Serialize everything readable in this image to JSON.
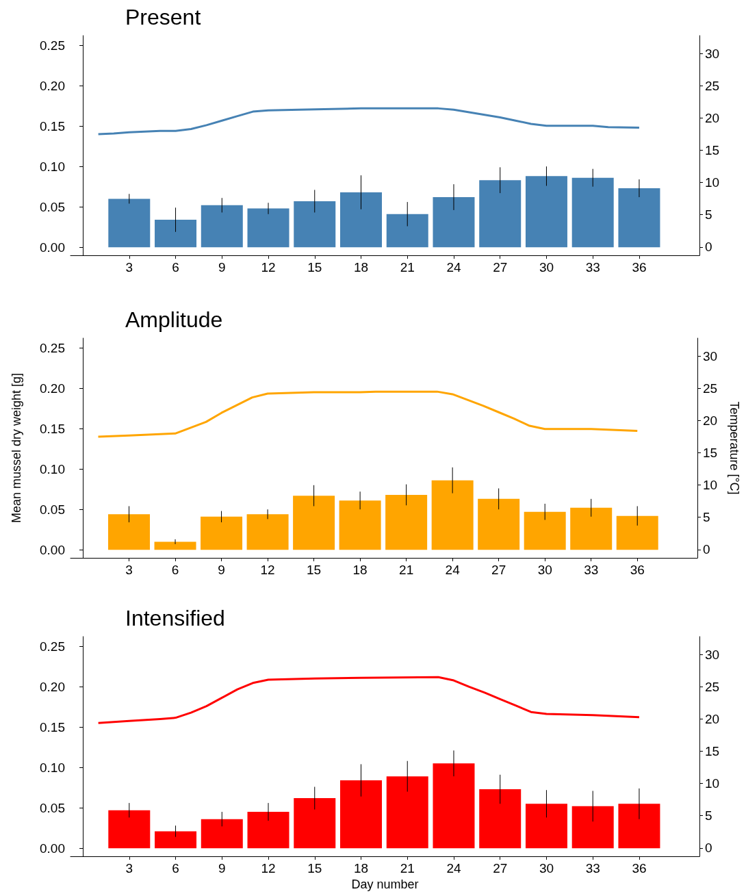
{
  "chart_data": [
    {
      "type": "bar",
      "title": "Present",
      "x": [
        3,
        6,
        9,
        12,
        15,
        18,
        21,
        24,
        27,
        30,
        33,
        36
      ],
      "xlim": [
        -0.8,
        39.9
      ],
      "xticks": [
        3,
        6,
        9,
        12,
        15,
        18,
        21,
        24,
        27,
        30,
        33,
        36
      ],
      "ylim": [
        -0.01,
        0.262
      ],
      "yticks": [
        {
          "value": 0,
          "label": "0.00"
        },
        {
          "value": 0.05,
          "label": "0.05"
        },
        {
          "value": 0.1,
          "label": "0.10"
        },
        {
          "value": 0.15,
          "label": "0.15"
        },
        {
          "value": 0.2,
          "label": "0.20"
        },
        {
          "value": 0.25,
          "label": "0.25"
        }
      ],
      "y2lim": [
        -1.3,
        32.8
      ],
      "y2ticks": [
        0,
        5,
        10,
        15,
        20,
        25,
        30
      ],
      "grid": false,
      "series": [
        {
          "color": "#4682b4",
          "values": [
            0.06,
            0.034,
            0.052,
            0.048,
            0.057,
            0.068,
            0.041,
            0.062,
            0.083,
            0.088,
            0.086,
            0.073
          ],
          "errors": [
            0.006,
            0.015,
            0.009,
            0.007,
            0.014,
            0.021,
            0.015,
            0.016,
            0.016,
            0.012,
            0.011,
            0.011
          ]
        },
        {
          "type": "line",
          "axis": "y2",
          "color": "#4682b4",
          "marker": "none",
          "x": [
            1,
            2,
            3,
            4,
            5,
            6,
            7,
            8,
            9,
            10,
            11,
            12,
            14,
            18,
            23,
            24,
            25,
            26,
            27,
            28,
            29,
            30,
            33,
            34,
            36
          ],
          "values": [
            17.5,
            17.6,
            17.8,
            17.9,
            18.0,
            18.0,
            18.3,
            18.9,
            19.6,
            20.3,
            21.0,
            21.2,
            21.3,
            21.5,
            21.5,
            21.3,
            20.9,
            20.5,
            20.1,
            19.6,
            19.1,
            18.8,
            18.8,
            18.6,
            18.5
          ]
        }
      ]
    },
    {
      "type": "bar",
      "title": "Amplitude",
      "ylabel": "Mean mussel dry weight [g]",
      "y2label": "Temperature [°C]",
      "x": [
        3,
        6,
        9,
        12,
        15,
        18,
        21,
        24,
        27,
        30,
        33,
        36
      ],
      "xlim": [
        -0.8,
        39.9
      ],
      "xticks": [
        3,
        6,
        9,
        12,
        15,
        18,
        21,
        24,
        27,
        30,
        33,
        36
      ],
      "ylim": [
        -0.01,
        0.262
      ],
      "yticks": [
        {
          "value": 0,
          "label": "0.00"
        },
        {
          "value": 0.05,
          "label": "0.05"
        },
        {
          "value": 0.1,
          "label": "0.10"
        },
        {
          "value": 0.15,
          "label": "0.15"
        },
        {
          "value": 0.2,
          "label": "0.20"
        },
        {
          "value": 0.25,
          "label": "0.25"
        }
      ],
      "y2lim": [
        -1.3,
        32.8
      ],
      "y2ticks": [
        0,
        5,
        10,
        15,
        20,
        25,
        30
      ],
      "grid": false,
      "series": [
        {
          "color": "#ffa500",
          "values": [
            0.044,
            0.01,
            0.041,
            0.044,
            0.067,
            0.061,
            0.068,
            0.086,
            0.063,
            0.047,
            0.052,
            0.042
          ],
          "errors": [
            0.01,
            0.003,
            0.007,
            0.006,
            0.013,
            0.011,
            0.013,
            0.016,
            0.013,
            0.01,
            0.011,
            0.012
          ]
        },
        {
          "type": "line",
          "axis": "y2",
          "color": "#ffa500",
          "marker": "none",
          "x": [
            1,
            3,
            6,
            7,
            8,
            9,
            10,
            11,
            12,
            15,
            18,
            19,
            23,
            24,
            25,
            26,
            27,
            28,
            29,
            30,
            33,
            36
          ],
          "values": [
            17.5,
            17.7,
            18.0,
            18.9,
            19.8,
            21.2,
            22.4,
            23.6,
            24.2,
            24.4,
            24.4,
            24.5,
            24.5,
            24.1,
            23.2,
            22.3,
            21.3,
            20.3,
            19.2,
            18.7,
            18.7,
            18.4
          ]
        }
      ]
    },
    {
      "type": "bar",
      "title": "Intensified",
      "xlabel": "Day number",
      "x": [
        3,
        6,
        9,
        12,
        15,
        18,
        21,
        24,
        27,
        30,
        33,
        36
      ],
      "xlim": [
        -0.8,
        39.9
      ],
      "xticks": [
        3,
        6,
        9,
        12,
        15,
        18,
        21,
        24,
        27,
        30,
        33,
        36
      ],
      "ylim": [
        -0.01,
        0.262
      ],
      "yticks": [
        {
          "value": 0,
          "label": "0.00"
        },
        {
          "value": 0.05,
          "label": "0.05"
        },
        {
          "value": 0.1,
          "label": "0.10"
        },
        {
          "value": 0.15,
          "label": "0.15"
        },
        {
          "value": 0.2,
          "label": "0.20"
        },
        {
          "value": 0.25,
          "label": "0.25"
        }
      ],
      "y2lim": [
        -1.3,
        32.8
      ],
      "y2ticks": [
        0,
        5,
        10,
        15,
        20,
        25,
        30
      ],
      "grid": false,
      "series": [
        {
          "color": "#ff0000",
          "values": [
            0.047,
            0.021,
            0.036,
            0.045,
            0.062,
            0.084,
            0.089,
            0.105,
            0.073,
            0.055,
            0.052,
            0.055
          ],
          "errors": [
            0.009,
            0.007,
            0.009,
            0.011,
            0.014,
            0.02,
            0.019,
            0.016,
            0.018,
            0.017,
            0.019,
            0.019
          ]
        },
        {
          "type": "line",
          "axis": "y2",
          "color": "#ff0000",
          "marker": "none",
          "x": [
            1,
            3,
            5,
            6,
            7,
            8,
            9,
            10,
            11,
            12,
            15,
            18,
            23,
            24,
            25,
            26,
            27,
            28,
            29,
            30,
            33,
            36
          ],
          "values": [
            19.4,
            19.7,
            20.0,
            20.2,
            21.0,
            22.0,
            23.3,
            24.6,
            25.6,
            26.1,
            26.3,
            26.4,
            26.5,
            26.0,
            25.0,
            24.1,
            23.1,
            22.1,
            21.1,
            20.8,
            20.6,
            20.3
          ]
        }
      ]
    }
  ]
}
